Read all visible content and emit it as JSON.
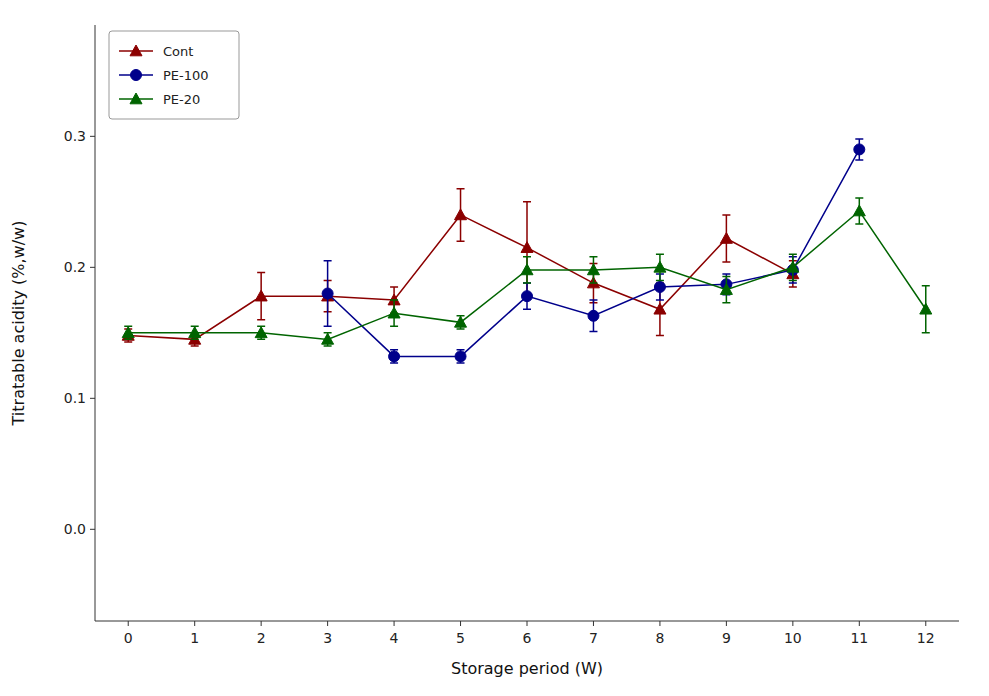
{
  "chart_data": {
    "type": "line",
    "x_label": "Storage period (W)",
    "y_label": "Titratable acidity (%,w/w)",
    "x": [
      0,
      1,
      2,
      3,
      4,
      5,
      6,
      7,
      8,
      9,
      10,
      11,
      12
    ],
    "xlim": [
      -0.5,
      12.5
    ],
    "xticks": [
      0,
      1,
      2,
      3,
      4,
      5,
      6,
      7,
      8,
      9,
      10,
      11,
      12
    ],
    "ylim": [
      -0.07,
      0.385
    ],
    "yticks": [
      {
        "value": 0,
        "label": "0.0"
      },
      0.1,
      0.2,
      0.3
    ],
    "grid": false,
    "legend": "upper left",
    "series": [
      {
        "name": "Cont",
        "color": "#8B0000",
        "marker": "triangle",
        "line_style": "solid",
        "values": [
          0.148,
          0.145,
          0.178,
          0.178,
          0.175,
          0.24,
          0.215,
          0.188,
          0.168,
          0.222,
          0.195,
          null,
          null
        ],
        "errors": [
          0.005,
          0.005,
          0.018,
          0.012,
          0.01,
          0.02,
          0.035,
          0.015,
          0.02,
          0.018,
          0.01,
          null,
          null
        ]
      },
      {
        "name": "PE-100",
        "color": "#00008B",
        "marker": "circle",
        "line_style": "solid",
        "values": [
          null,
          null,
          null,
          0.18,
          0.132,
          0.132,
          0.178,
          0.163,
          0.185,
          0.187,
          0.198,
          0.29,
          null
        ],
        "errors": [
          null,
          null,
          null,
          0.025,
          0.005,
          0.005,
          0.01,
          0.012,
          0.01,
          0.008,
          0.01,
          0.008,
          null
        ]
      },
      {
        "name": "PE-20",
        "color": "#006400",
        "marker": "triangle",
        "line_style": "solid",
        "values": [
          0.15,
          0.15,
          0.15,
          0.145,
          0.165,
          0.158,
          0.198,
          0.198,
          0.2,
          0.183,
          0.2,
          0.243,
          0.168
        ],
        "errors": [
          0.005,
          0.005,
          0.005,
          0.005,
          0.01,
          0.005,
          0.01,
          0.01,
          0.01,
          0.01,
          0.01,
          0.01,
          0.018
        ]
      }
    ]
  }
}
